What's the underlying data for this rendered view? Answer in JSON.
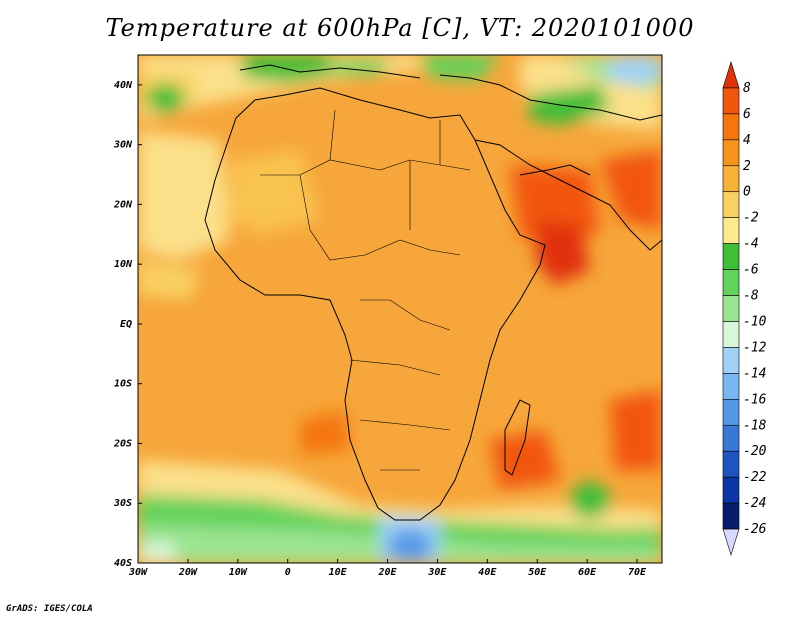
{
  "title": "Temperature at 600hPa [C], VT: 2020101000",
  "credit": "GrADS: IGES/COLA",
  "map": {
    "lon_ticks": [
      "30W",
      "20W",
      "10W",
      "0",
      "10E",
      "20E",
      "30E",
      "40E",
      "50E",
      "60E",
      "70E"
    ],
    "lat_ticks": [
      "40N",
      "30N",
      "20N",
      "10N",
      "EQ",
      "10S",
      "20S",
      "30S",
      "40S"
    ],
    "lon_range": [
      -30,
      75
    ],
    "lat_range": [
      -40,
      45
    ]
  },
  "colorbar": {
    "labels": [
      "8",
      "6",
      "4",
      "2",
      "0",
      "-2",
      "-4",
      "-6",
      "-8",
      "-10",
      "-12",
      "-14",
      "-16",
      "-18",
      "-20",
      "-22",
      "-24",
      "-26"
    ],
    "colors": [
      "#e0310a",
      "#f2560c",
      "#f5760f",
      "#f6931b",
      "#f8b237",
      "#f9d162",
      "#fbeb8e",
      "#3fbe38",
      "#62d25a",
      "#9be491",
      "#d8f6da",
      "#9fd2f6",
      "#7ab6f2",
      "#5798e6",
      "#3a78d8",
      "#1f55c3",
      "#0a36a6",
      "#061c6d",
      "#d8d8ff"
    ]
  }
}
